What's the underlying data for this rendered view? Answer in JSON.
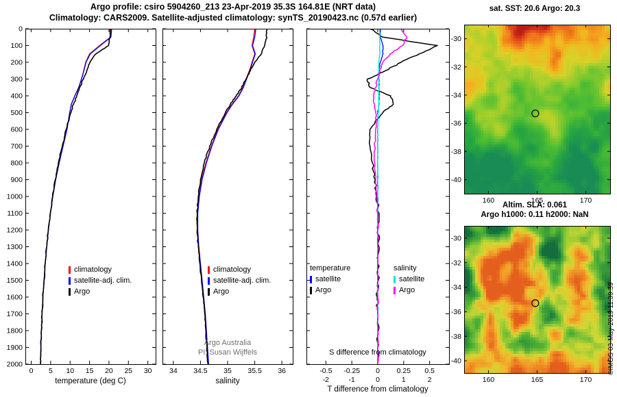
{
  "header": {
    "title_line1": "Argo profile: csiro 5904260_213 23-Apr-2019 35.3S 164.81E (NRT data)",
    "title_line2": "Climatology: CARS2009. Satellite-adjusted climatology: synTS_20190423.nc (0.57d earlier)"
  },
  "watermark": "©IMOS 03-May-2019 11:39:59",
  "annotations": {
    "program": "Argo Australia",
    "pi": "PI: Susan Wijffels",
    "s_diff_label": "S difference from climatology"
  },
  "axis_labels": {
    "temperature": "temperature (deg C)",
    "salinity": "salinity",
    "t_diff": "T difference from climatology"
  },
  "map_titles": {
    "sst": "sat. SST: 20.6 Argo: 20.3",
    "sla_line1": "Altim. SLA: 0.061",
    "sla_line2": "Argo h1000: 0.11 h2000: NaN"
  },
  "legends": {
    "profile": {
      "items": [
        {
          "label": "climatology",
          "color": "#ff0000"
        },
        {
          "label": "satellite-adj. clim.",
          "color": "#0000ff"
        },
        {
          "label": "Argo",
          "color": "#000000"
        }
      ]
    },
    "diff": {
      "col1": {
        "header": "temperature",
        "items": [
          {
            "label": "satellite",
            "color": "#0000ff"
          },
          {
            "label": "Argo",
            "color": "#000000"
          }
        ]
      },
      "col2": {
        "header": "salinity",
        "items": [
          {
            "label": "satellite",
            "color": "#00e6e6"
          },
          {
            "label": "Argo",
            "color": "#ff00ff"
          }
        ]
      }
    }
  },
  "chart_data": [
    {
      "id": "temperature",
      "type": "line",
      "xlabel": "temperature (deg C)",
      "xlim": [
        -1.5,
        32
      ],
      "xticks": [
        0,
        5,
        10,
        15,
        20,
        25,
        30
      ],
      "xtick_labels": [
        "0",
        "5",
        "10",
        "15",
        "20",
        "25",
        "30"
      ],
      "ylim": [
        0,
        2000
      ],
      "yticks": [
        0,
        100,
        200,
        300,
        400,
        500,
        600,
        700,
        800,
        900,
        1000,
        1100,
        1200,
        1300,
        1400,
        1500,
        1600,
        1700,
        1800,
        1900,
        2000
      ],
      "ytick_labels": [
        "0",
        "100",
        "200",
        "300",
        "400",
        "500",
        "600",
        "700",
        "800",
        "900",
        "1000",
        "1100",
        "1200",
        "1300",
        "1400",
        "1500",
        "1600",
        "1700",
        "1800",
        "1900",
        "2000"
      ],
      "depths": [
        0,
        50,
        100,
        150,
        200,
        250,
        300,
        350,
        400,
        450,
        500,
        600,
        700,
        800,
        900,
        1000,
        1100,
        1200,
        1300,
        1400,
        1500,
        1600,
        1700,
        1800,
        1900,
        2000
      ],
      "seed": 11,
      "series": [
        {
          "name": "climatology",
          "color": "#ff0000",
          "width": 1.3,
          "values": [
            20.6,
            20.4,
            17.6,
            15.0,
            14.0,
            13.5,
            12.9,
            12.2,
            11.2,
            10.3,
            9.9,
            9.2,
            8.2,
            7.2,
            6.3,
            5.55,
            4.95,
            4.42,
            4.0,
            3.62,
            3.3,
            3.02,
            2.8,
            2.62,
            2.48,
            2.38
          ]
        },
        {
          "name": "satellite-adj. clim.",
          "color": "#0000ff",
          "width": 1.3,
          "values": [
            20.7,
            20.5,
            17.8,
            15.2,
            14.1,
            13.55,
            12.95,
            12.25,
            11.25,
            10.35,
            9.9,
            9.2,
            8.2,
            7.2,
            6.3,
            5.55,
            4.95,
            4.42,
            4.0,
            3.62,
            3.3,
            3.02,
            2.8,
            2.62,
            2.48,
            2.38
          ]
        },
        {
          "name": "Argo",
          "color": "#000000",
          "width": 1.6,
          "jitter": 0.7,
          "values": [
            20.3,
            20.25,
            19.9,
            16.6,
            15.1,
            14.3,
            13.4,
            12.5,
            11.7,
            10.9,
            10.2,
            9.0,
            8.0,
            7.0,
            6.2,
            5.5,
            4.9,
            4.4,
            4.0,
            3.6,
            3.3,
            3.0,
            2.8,
            2.6,
            2.5,
            2.4
          ]
        }
      ]
    },
    {
      "id": "salinity",
      "type": "line",
      "xlabel": "salinity",
      "xlim": [
        33.8,
        36.2
      ],
      "xticks": [
        34,
        34.5,
        35,
        35.5,
        36
      ],
      "xtick_labels": [
        "34",
        "34.5",
        "35",
        "35.5",
        "36"
      ],
      "ylim": [
        0,
        2000
      ],
      "yticks": [
        0,
        100,
        200,
        300,
        400,
        500,
        600,
        700,
        800,
        900,
        1000,
        1100,
        1200,
        1300,
        1400,
        1500,
        1600,
        1700,
        1800,
        1900,
        2000
      ],
      "depths": [
        0,
        50,
        100,
        150,
        200,
        250,
        300,
        350,
        400,
        450,
        500,
        600,
        700,
        800,
        900,
        1000,
        1100,
        1200,
        1300,
        1400,
        1500,
        1600,
        1700,
        1800,
        1900,
        2000
      ],
      "seed": 17,
      "series": [
        {
          "name": "climatology",
          "color": "#ff0000",
          "width": 1.3,
          "values": [
            35.5,
            35.48,
            35.45,
            35.5,
            35.45,
            35.4,
            35.34,
            35.28,
            35.2,
            35.08,
            34.98,
            34.82,
            34.7,
            34.6,
            34.52,
            34.47,
            34.44,
            34.44,
            34.46,
            34.49,
            34.52,
            34.55,
            34.58,
            34.6,
            34.62,
            34.64
          ]
        },
        {
          "name": "satellite-adj. clim.",
          "color": "#0000ff",
          "width": 1.3,
          "values": [
            35.52,
            35.5,
            35.46,
            35.51,
            35.46,
            35.41,
            35.35,
            35.29,
            35.21,
            35.09,
            34.99,
            34.83,
            34.71,
            34.61,
            34.53,
            34.48,
            34.45,
            34.45,
            34.47,
            34.5,
            34.53,
            34.56,
            34.59,
            34.61,
            34.63,
            34.65
          ]
        },
        {
          "name": "Argo",
          "color": "#000000",
          "width": 1.6,
          "jitter": 0.8,
          "values": [
            35.72,
            35.72,
            35.68,
            35.62,
            35.5,
            35.42,
            35.34,
            35.26,
            35.16,
            35.05,
            34.96,
            34.8,
            34.67,
            34.57,
            34.5,
            34.46,
            34.44,
            34.44,
            34.46,
            34.49,
            34.52,
            34.55,
            34.58,
            34.6,
            34.62,
            34.64
          ]
        }
      ]
    },
    {
      "id": "difference",
      "type": "line",
      "xlabel": "T difference from climatology",
      "xlabel_s": "S difference from climatology",
      "xlim": [
        -2.75,
        2.75
      ],
      "xticks": [
        -2,
        -1,
        0,
        1,
        2
      ],
      "xtick_labels": [
        "-0.5",
        "-0.25",
        "0",
        "0.25",
        "0.5"
      ],
      "xtick_labels2": [
        "-2",
        "-1",
        "0",
        "1",
        "2"
      ],
      "ylim": [
        0,
        2000
      ],
      "yticks": [
        0,
        100,
        200,
        300,
        400,
        500,
        600,
        700,
        800,
        900,
        1000,
        1100,
        1200,
        1300,
        1400,
        1500,
        1600,
        1700,
        1800,
        1900,
        2000
      ],
      "depths": [
        0,
        50,
        100,
        150,
        200,
        250,
        300,
        350,
        400,
        450,
        500,
        600,
        700,
        800,
        900,
        1000,
        1100,
        1200,
        1300,
        1400,
        1500,
        1600,
        1700,
        1800,
        1900,
        2000
      ],
      "seed": 5,
      "series": [
        {
          "name": "T satellite",
          "color": "#0000ff",
          "width": 1.3,
          "jitter": 0.5,
          "values": [
            0.1,
            0.1,
            0.2,
            0.2,
            0.1,
            0.05,
            0.05,
            0.05,
            0.05,
            0.05,
            0,
            0,
            0,
            0,
            0,
            0,
            0,
            0,
            0,
            0,
            0,
            0,
            0,
            0,
            0,
            0
          ]
        },
        {
          "name": "T Argo",
          "color": "#000000",
          "width": 1.5,
          "jitter": 1.8,
          "values": [
            -0.3,
            0.2,
            2.3,
            1.6,
            0.9,
            0.3,
            -0.4,
            -0.3,
            0.5,
            0.6,
            0.2,
            -0.3,
            -0.3,
            -0.2,
            -0.1,
            -0.05,
            0.05,
            0,
            0.05,
            0,
            0.02,
            -0.02,
            0,
            0.02,
            0,
            0
          ]
        },
        {
          "name": "S satellite",
          "color": "#00e6e6",
          "width": 1.5,
          "jitter": 0.3,
          "scale": 4,
          "values": [
            0.02,
            0.02,
            0.02,
            0.02,
            0.01,
            0.01,
            0.01,
            0.01,
            0.01,
            0.01,
            0.005,
            0,
            0,
            0,
            0,
            0,
            0,
            0,
            0,
            0,
            0,
            0,
            0,
            0,
            0,
            0
          ]
        },
        {
          "name": "S Argo",
          "color": "#ff00ff",
          "width": 1.5,
          "jitter": 1.2,
          "scale": 4,
          "values": [
            0.22,
            0.28,
            0.24,
            0.12,
            0.05,
            0.02,
            0,
            -0.02,
            -0.04,
            -0.03,
            -0.02,
            -0.02,
            -0.03,
            -0.03,
            -0.02,
            -0.01,
            0,
            0,
            0,
            0,
            0,
            0,
            0,
            0,
            0,
            0
          ]
        }
      ]
    },
    {
      "id": "map-sst",
      "type": "heatmap",
      "style": "sst",
      "seed": 7,
      "title": "sat. SST: 20.6 Argo: 20.3",
      "lon_range": [
        157.5,
        172.5
      ],
      "lat_range": [
        -41,
        -29
      ],
      "xticks": [
        160,
        165,
        170
      ],
      "yticks": [
        -30,
        -32,
        -34,
        -36,
        -38,
        -40
      ],
      "marker": {
        "lon": 164.81,
        "lat": -35.3
      }
    },
    {
      "id": "map-sla",
      "type": "heatmap",
      "style": "sla",
      "seed": 23,
      "title": "Altim. SLA: 0.061",
      "subtitle": "Argo h1000: 0.11 h2000: NaN",
      "lon_range": [
        157.5,
        172.5
      ],
      "lat_range": [
        -41,
        -29
      ],
      "xticks": [
        160,
        165,
        170
      ],
      "yticks": [
        -30,
        -32,
        -34,
        -36,
        -38,
        -40
      ],
      "marker": {
        "lon": 164.81,
        "lat": -35.3
      }
    }
  ]
}
